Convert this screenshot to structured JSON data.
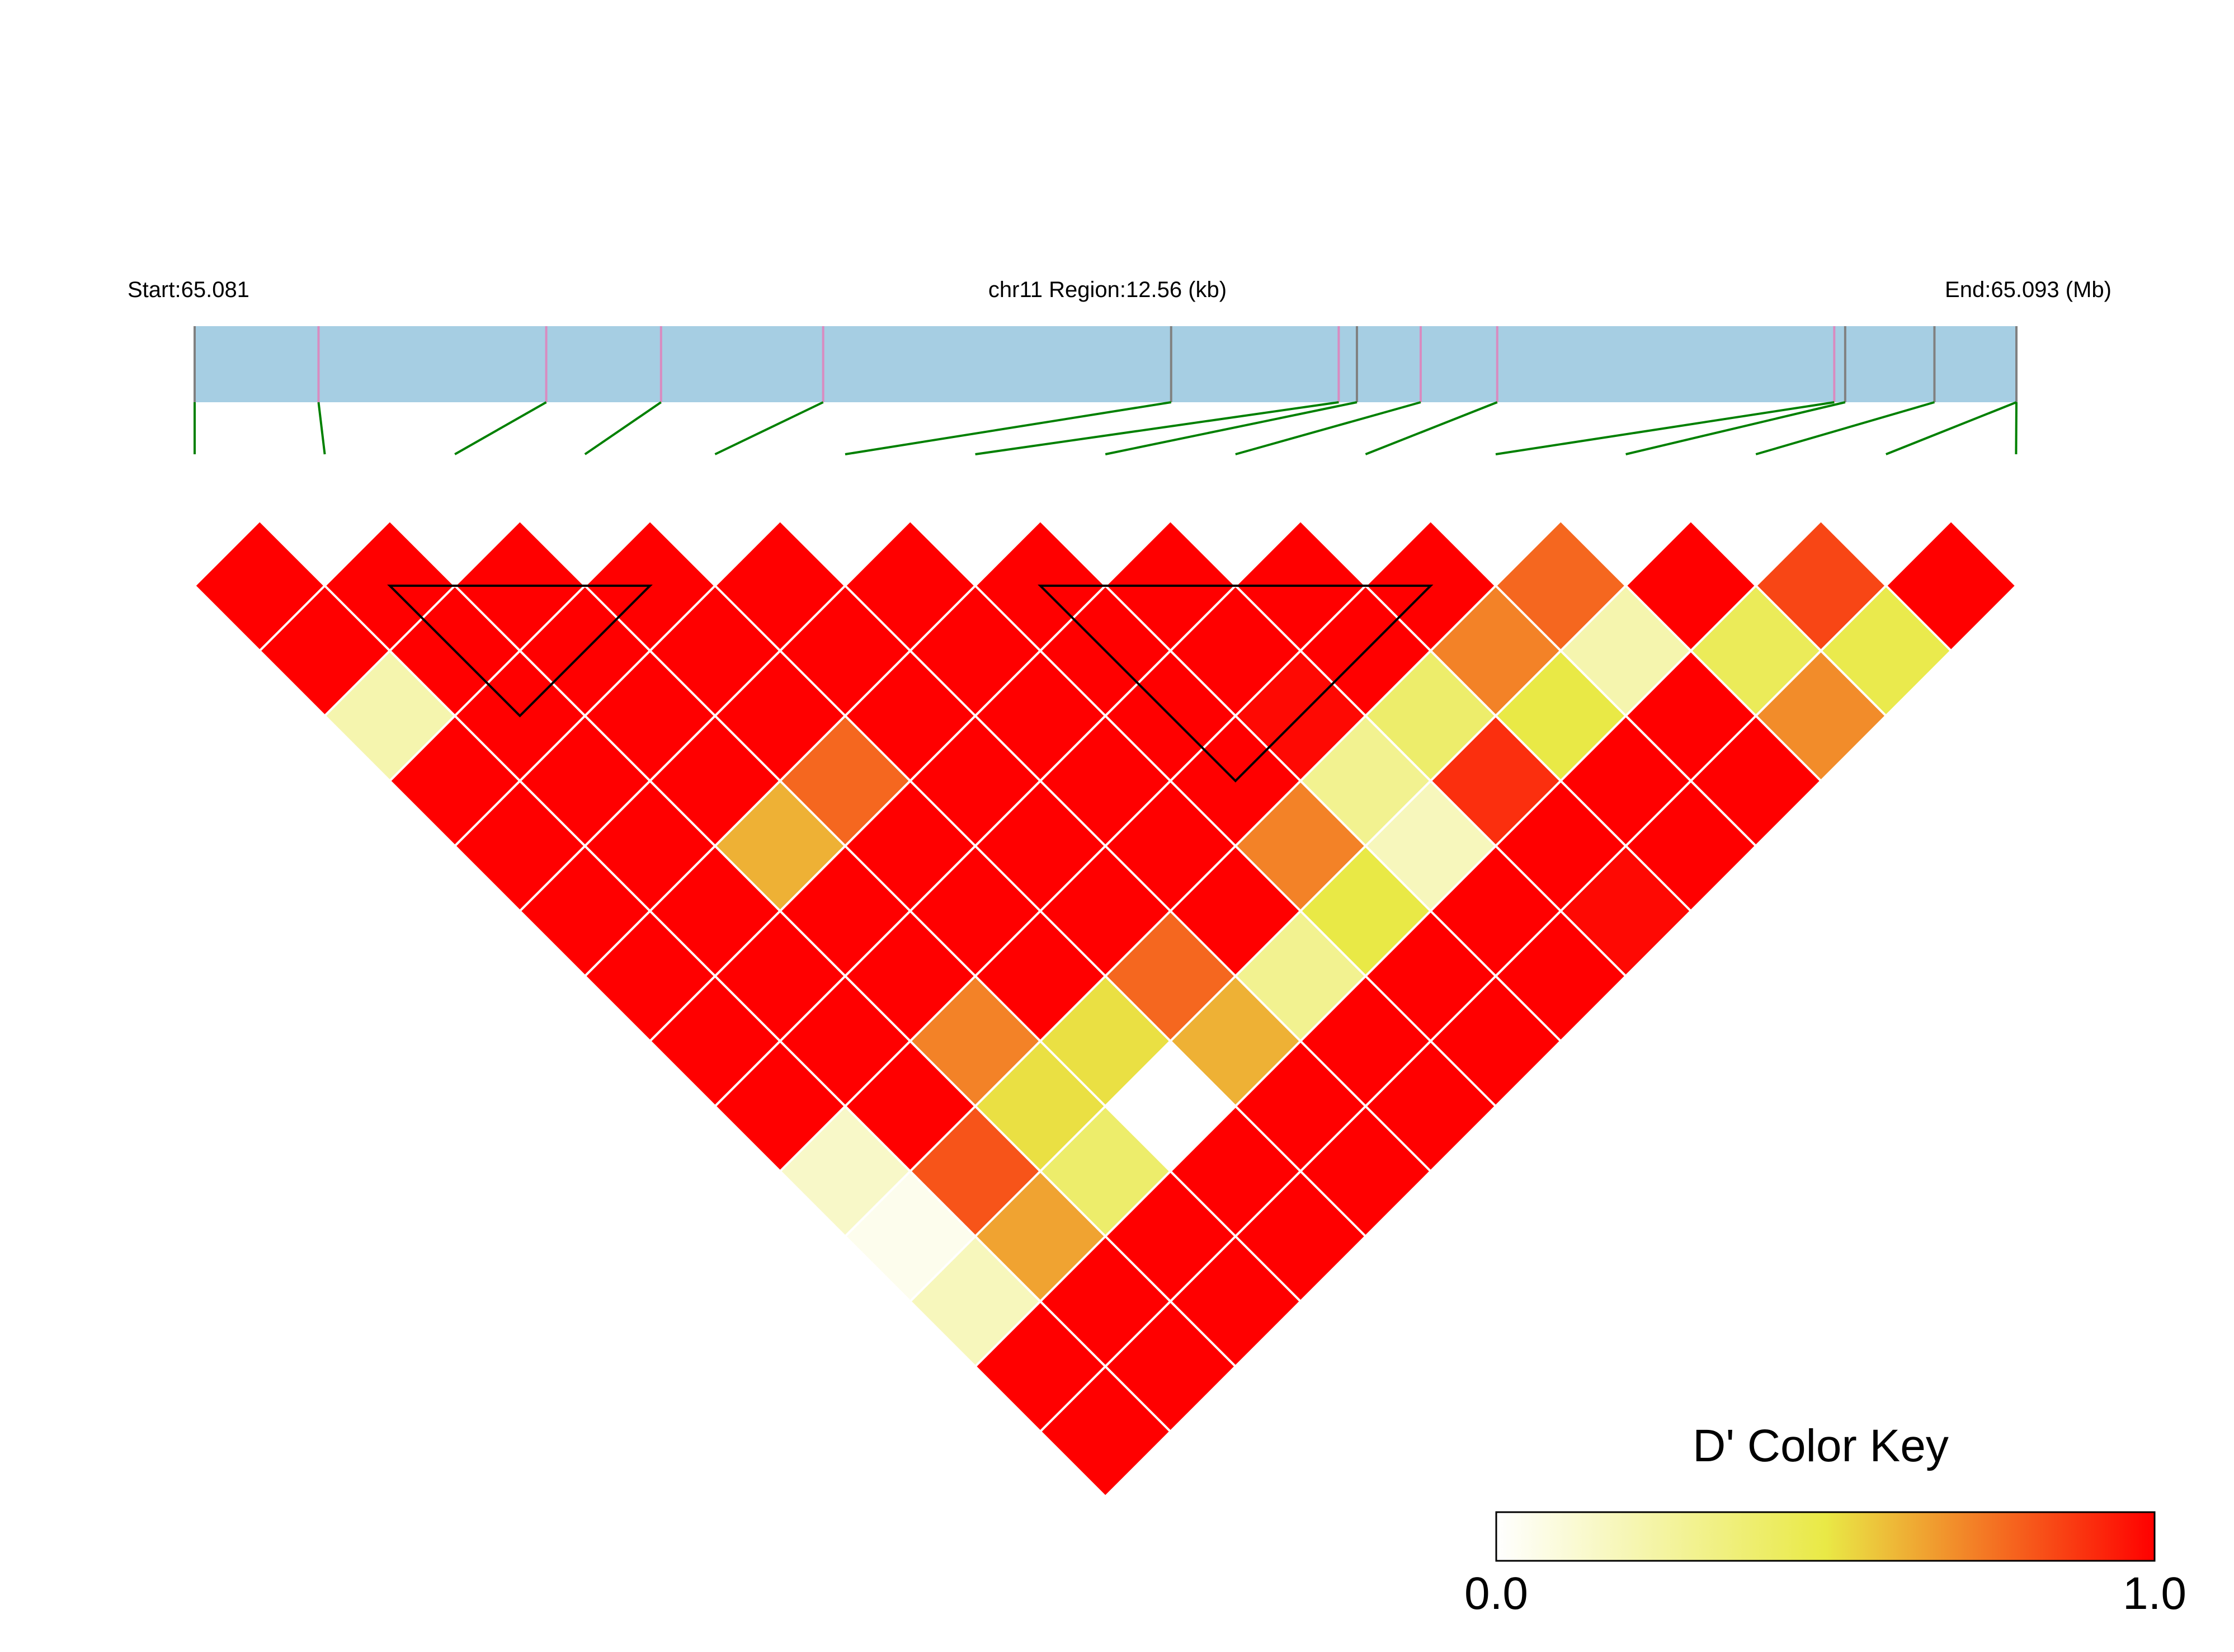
{
  "chart_data": {
    "type": "heatmap",
    "title": "",
    "region": {
      "start_label": "Start:65.081",
      "center_label": "chr11 Region:12.56 (kb)",
      "end_label": "End:65.093 (Mb)"
    },
    "snp_count": 15,
    "snp_positions_fraction": [
      0,
      0.068,
      0.193,
      0.256,
      0.345,
      0.536,
      0.628,
      0.638,
      0.673,
      0.715,
      0.9,
      0.906,
      0.955,
      1.0,
      1.0
    ],
    "snp_mark_colors": [
      "#808080",
      "#d98bc0",
      "#d98bc0",
      "#d98bc0",
      "#d98bc0",
      "#808080",
      "#d98bc0",
      "#808080",
      "#d98bc0",
      "#d98bc0",
      "#d98bc0",
      "#808080",
      "#808080",
      "#808080",
      "#808080"
    ],
    "dprime_rows": [
      [
        1.0,
        1.0,
        1.0,
        1.0,
        1.0,
        1.0,
        1.0,
        1.0,
        1.0,
        1.0,
        0.78,
        1.0,
        0.85,
        1.0
      ],
      [
        1.0,
        1.0,
        1.0,
        1.0,
        1.0,
        1.0,
        1.0,
        1.0,
        1.0,
        0.72,
        0.22,
        0.45,
        0.48
      ],
      [
        0.22,
        1.0,
        1.0,
        1.0,
        1.0,
        1.0,
        1.0,
        0.98,
        0.4,
        0.5,
        1.0,
        0.7
      ],
      [
        1.0,
        1.0,
        1.0,
        0.78,
        1.0,
        1.0,
        1.0,
        0.3,
        0.9,
        1.0,
        1.0
      ],
      [
        1.0,
        1.0,
        0.62,
        1.0,
        1.0,
        1.0,
        0.72,
        0.18,
        1.0,
        1.0
      ],
      [
        1.0,
        1.0,
        1.0,
        1.0,
        1.0,
        1.0,
        0.5,
        1.0,
        0.98
      ],
      [
        1.0,
        1.0,
        1.0,
        1.0,
        0.78,
        0.3,
        1.0,
        1.0
      ],
      [
        1.0,
        1.0,
        0.72,
        0.52,
        0.62,
        1.0,
        1.0
      ],
      [
        1.0,
        1.0,
        0.52,
        0.0,
        1.0,
        1.0
      ],
      [
        0.15,
        0.82,
        0.4,
        1.0,
        1.0
      ],
      [
        0.05,
        0.65,
        1.0,
        1.0
      ],
      [
        0.18,
        1.0,
        1.0
      ],
      [
        1.0,
        1.0
      ],
      [
        1.0
      ]
    ],
    "haplotype_blocks": [
      [
        1,
        4
      ],
      [
        6,
        10
      ]
    ],
    "color_key": {
      "title": "D' Color Key",
      "min_label": "0.0",
      "max_label": "1.0",
      "min": 0.0,
      "max": 1.0,
      "gradient": [
        "#ffffff",
        "#e9e946",
        "#ff0000"
      ]
    },
    "colors": {
      "region_bar": "#a6cee3",
      "snp_link_line": "#008000",
      "block_outline": "#000000",
      "cell_border": "#ffffff"
    }
  }
}
